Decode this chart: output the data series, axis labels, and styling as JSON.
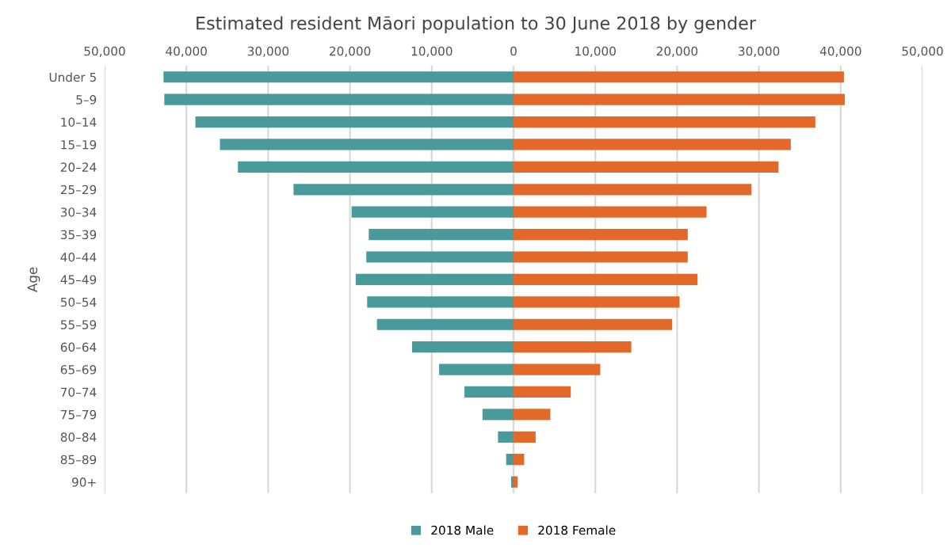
{
  "chart_data": {
    "type": "bar",
    "orientation": "horizontal",
    "title": "Estimated resident Māori population to 30 June 2018 by gender",
    "ylabel": "Age",
    "categories": [
      "Under 5",
      "5–9",
      "10–14",
      "15–19",
      "20–24",
      "25–29",
      "30–34",
      "35–39",
      "40–44",
      "45–49",
      "50–54",
      "55–59",
      "60–64",
      "65–69",
      "70–74",
      "75–79",
      "80–84",
      "85–89",
      "90+"
    ],
    "series": [
      {
        "name": "2018 Male",
        "color": "#4a9a9c",
        "values": [
          -42800,
          -42700,
          -38900,
          -35900,
          -33700,
          -26900,
          -19800,
          -17700,
          -18000,
          -19300,
          -17900,
          -16700,
          -12400,
          -9100,
          -6000,
          -3800,
          -1900,
          -900,
          -300
        ]
      },
      {
        "name": "2018 Female",
        "color": "#e2692a",
        "values": [
          40400,
          40500,
          36900,
          33900,
          32400,
          29100,
          23600,
          21300,
          21300,
          22500,
          20300,
          19400,
          14400,
          10600,
          7000,
          4500,
          2700,
          1300,
          500
        ]
      }
    ],
    "xlim": [
      -50000,
      50000
    ],
    "xticks": [
      {
        "value": -50000,
        "label": "50,000"
      },
      {
        "value": -40000,
        "label": "40,000"
      },
      {
        "value": -30000,
        "label": "30,000"
      },
      {
        "value": -20000,
        "label": "20,000"
      },
      {
        "value": -10000,
        "label": "10,000"
      },
      {
        "value": 0,
        "label": "0"
      },
      {
        "value": 10000,
        "label": "10,000"
      },
      {
        "value": 20000,
        "label": "20,000"
      },
      {
        "value": 30000,
        "label": "30,000"
      },
      {
        "value": 40000,
        "label": "40,000"
      },
      {
        "value": 50000,
        "label": "50,000"
      }
    ],
    "grid": "x",
    "legend": "bottom",
    "stacked": true
  }
}
